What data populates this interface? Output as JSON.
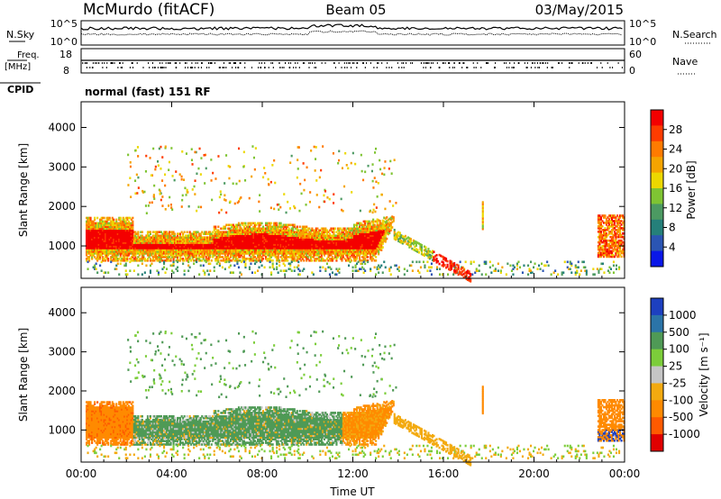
{
  "header": {
    "station": "McMurdo (fitACF)",
    "beam": "Beam 05",
    "date": "03/May/2015",
    "cpid_label": "CPID",
    "cpid_value": "normal (fast) 151 RF"
  },
  "top_panels": {
    "nsky_label": "N.Sky",
    "nsky_ticks": [
      "10^5",
      "10^0"
    ],
    "nsearch_label": "N.Search",
    "nsearch_ticks": [
      "10^5",
      "10^0"
    ],
    "freq_label_1": "Freq.",
    "freq_label_2": "[MHz]",
    "freq_ticks": [
      "18",
      "8"
    ],
    "nave_label": "Nave",
    "nave_ticks": [
      "60",
      "0"
    ]
  },
  "colors": {
    "power_scale": [
      "#0a17e8",
      "#2b55b3",
      "#25807a",
      "#4c9a62",
      "#7fc433",
      "#ecd800",
      "#f5a400",
      "#ff7b00",
      "#ff3c00",
      "#f40000"
    ],
    "velocity_scale": [
      "#e00000",
      "#ff5a00",
      "#ff8a00",
      "#f3aa10",
      "#c5c5c5",
      "#7ccd3a",
      "#4f9a56",
      "#2b74a8",
      "#1d40c0"
    ]
  },
  "chart_data": [
    {
      "type": "heatmap",
      "name": "power",
      "xlabel": "",
      "ylabel": "Slant Range [km]",
      "x_ticks": [
        "00:00",
        "04:00",
        "08:00",
        "12:00",
        "16:00",
        "20:00",
        "00:00"
      ],
      "y_ticks": [
        1000,
        2000,
        3000,
        4000
      ],
      "ylim": [
        180,
        4650
      ],
      "xlim_hours": [
        0,
        24
      ],
      "colorbar": {
        "label": "Power [dB]",
        "ticks": [
          4,
          8,
          12,
          16,
          20,
          24,
          28
        ],
        "range": [
          0,
          32
        ]
      }
    },
    {
      "type": "heatmap",
      "name": "velocity",
      "xlabel": "Time UT",
      "ylabel": "Slant Range [km]",
      "x_ticks": [
        "00:00",
        "04:00",
        "08:00",
        "12:00",
        "16:00",
        "20:00",
        "00:00"
      ],
      "y_ticks": [
        1000,
        2000,
        3000,
        4000
      ],
      "ylim": [
        180,
        4650
      ],
      "xlim_hours": [
        0,
        24
      ],
      "colorbar": {
        "label": "Velocity [m s⁻¹]",
        "ticks": [
          "-1000",
          "-500",
          "-100",
          "-25",
          "25",
          "100",
          "500",
          "1000"
        ],
        "range": [
          -1000,
          1000
        ]
      }
    }
  ]
}
